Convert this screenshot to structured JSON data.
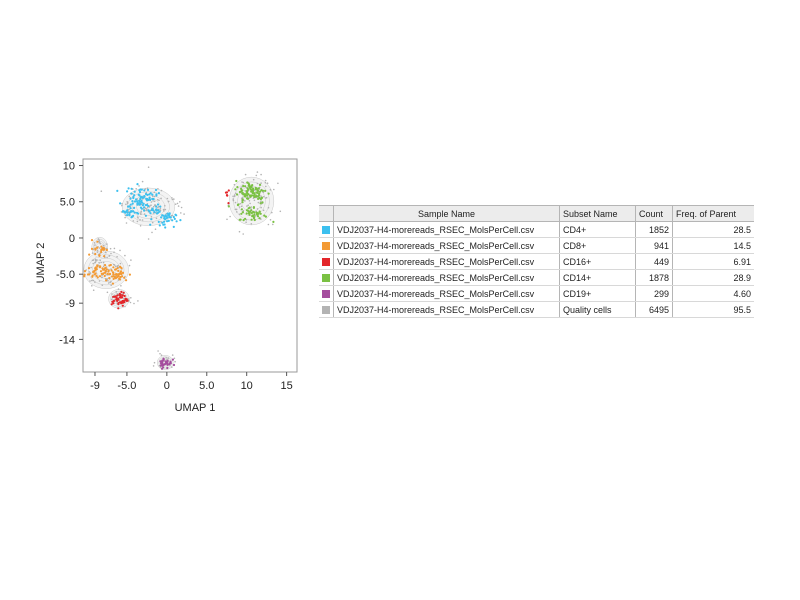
{
  "chart_data": {
    "type": "scatter",
    "xlabel": "UMAP 1",
    "ylabel": "UMAP 2",
    "xlim": [
      -10.5,
      16.3
    ],
    "ylim": [
      -18.5,
      10.9
    ],
    "xticks": [
      -9,
      -5,
      0,
      5,
      10,
      15
    ],
    "xtick_labels": [
      "-9",
      "-5.0",
      "0",
      "5.0",
      "10",
      "15"
    ],
    "yticks": [
      10,
      5,
      0,
      -5,
      -9,
      -14
    ],
    "ytick_labels": [
      "10",
      "5.0",
      "0",
      "-5.0",
      "-9",
      "-14"
    ],
    "grid": false,
    "series": [
      {
        "name": "CD4+",
        "color": "#3cc0ef",
        "clusters": [
          {
            "cx": -3.2,
            "cy": 5.6,
            "sx": 1.0,
            "sy": 0.7,
            "n": 70
          },
          {
            "cx": -4.5,
            "cy": 3.6,
            "sx": 0.6,
            "sy": 0.5,
            "n": 25
          },
          {
            "cx": -0.3,
            "cy": 2.6,
            "sx": 0.7,
            "sy": 0.5,
            "n": 35
          },
          {
            "cx": -1.6,
            "cy": 3.8,
            "sx": 0.7,
            "sy": 0.4,
            "n": 20
          }
        ]
      },
      {
        "name": "CD8+",
        "color": "#f39a34",
        "clusters": [
          {
            "cx": -8.8,
            "cy": -4.8,
            "sx": 0.8,
            "sy": 0.5,
            "n": 45
          },
          {
            "cx": -6.3,
            "cy": -5.0,
            "sx": 0.8,
            "sy": 0.6,
            "n": 45
          },
          {
            "cx": -8.4,
            "cy": -1.4,
            "sx": 0.4,
            "sy": 0.6,
            "n": 22
          }
        ]
      },
      {
        "name": "CD16+",
        "color": "#e3262a",
        "clusters": [
          {
            "cx": -5.9,
            "cy": -8.5,
            "sx": 0.5,
            "sy": 0.5,
            "n": 50
          },
          {
            "cx": 7.8,
            "cy": 6.0,
            "sx": 0.15,
            "sy": 0.5,
            "n": 6
          }
        ]
      },
      {
        "name": "CD14+",
        "color": "#7ac143",
        "clusters": [
          {
            "cx": 10.6,
            "cy": 6.3,
            "sx": 1.0,
            "sy": 0.8,
            "n": 90
          },
          {
            "cx": 10.8,
            "cy": 3.3,
            "sx": 0.9,
            "sy": 0.5,
            "n": 45
          }
        ]
      },
      {
        "name": "CD19+",
        "color": "#a54d9e",
        "clusters": [
          {
            "cx": -0.2,
            "cy": -17.2,
            "sx": 0.4,
            "sy": 0.4,
            "n": 35
          }
        ]
      },
      {
        "name": "Quality cells",
        "color": "#b3b3b3",
        "clusters": [
          {
            "cx": -2.3,
            "cy": 4.4,
            "sx": 1.8,
            "sy": 1.4,
            "n": 120
          },
          {
            "cx": 10.6,
            "cy": 5.2,
            "sx": 1.6,
            "sy": 1.7,
            "n": 110
          },
          {
            "cx": -7.6,
            "cy": -4.2,
            "sx": 1.5,
            "sy": 1.4,
            "n": 90
          },
          {
            "cx": -6.0,
            "cy": -8.4,
            "sx": 0.8,
            "sy": 0.7,
            "n": 30
          },
          {
            "cx": -8.4,
            "cy": -1.3,
            "sx": 0.6,
            "sy": 0.9,
            "n": 20
          },
          {
            "cx": -0.2,
            "cy": -17.1,
            "sx": 0.6,
            "sy": 0.6,
            "n": 20
          }
        ]
      }
    ],
    "contours": [
      {
        "cx": -2.3,
        "cy": 4.3,
        "rx": 3.3,
        "ry": 2.6
      },
      {
        "cx": 10.6,
        "cy": 5.1,
        "rx": 2.8,
        "ry": 3.3
      },
      {
        "cx": -7.6,
        "cy": -4.4,
        "rx": 2.8,
        "ry": 2.6
      },
      {
        "cx": -8.4,
        "cy": -1.3,
        "rx": 1.0,
        "ry": 1.4
      },
      {
        "cx": -6.0,
        "cy": -8.4,
        "rx": 1.3,
        "ry": 1.3
      },
      {
        "cx": -0.2,
        "cy": -17.2,
        "rx": 1.0,
        "ry": 1.0
      }
    ]
  },
  "table": {
    "headers": [
      "Sample Name",
      "Subset Name",
      "Count",
      "Freq. of Parent"
    ],
    "rows": [
      {
        "color": "#3cc0ef",
        "sample": "VDJ2037-H4-morereads_RSEC_MolsPerCell.csv",
        "subset": "CD4+",
        "count": "1852",
        "freq": "28.5"
      },
      {
        "color": "#f39a34",
        "sample": "VDJ2037-H4-morereads_RSEC_MolsPerCell.csv",
        "subset": "CD8+",
        "count": "941",
        "freq": "14.5"
      },
      {
        "color": "#e3262a",
        "sample": "VDJ2037-H4-morereads_RSEC_MolsPerCell.csv",
        "subset": "CD16+",
        "count": "449",
        "freq": "6.91"
      },
      {
        "color": "#7ac143",
        "sample": "VDJ2037-H4-morereads_RSEC_MolsPerCell.csv",
        "subset": "CD14+",
        "count": "1878",
        "freq": "28.9"
      },
      {
        "color": "#a54d9e",
        "sample": "VDJ2037-H4-morereads_RSEC_MolsPerCell.csv",
        "subset": "CD19+",
        "count": "299",
        "freq": "4.60"
      },
      {
        "color": "#b3b3b3",
        "sample": "VDJ2037-H4-morereads_RSEC_MolsPerCell.csv",
        "subset": "Quality cells",
        "count": "6495",
        "freq": "95.5"
      }
    ]
  }
}
